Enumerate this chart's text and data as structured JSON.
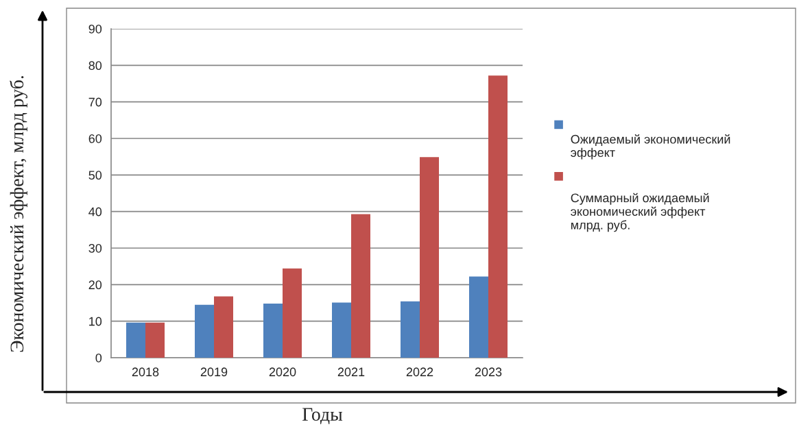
{
  "chart_data": {
    "type": "bar",
    "xlabel": "Годы",
    "ylabel": "Экономический эффект, млрд руб.",
    "categories": [
      "2018",
      "2019",
      "2020",
      "2021",
      "2022",
      "2023"
    ],
    "series": [
      {
        "name": "Ожидаемый экономический\nэффект",
        "color": "#4f81bd",
        "values": [
          9.6,
          14.5,
          14.8,
          15.1,
          15.4,
          22.2
        ]
      },
      {
        "name": "Суммарный ожидаемый\nэкономический эффект\nмлрд. руб.",
        "color": "#c0504d",
        "values": [
          9.6,
          16.8,
          24.4,
          39.3,
          54.9,
          77.2
        ]
      }
    ],
    "ylim": [
      0,
      90
    ],
    "yticks": [
      0,
      10,
      20,
      30,
      40,
      50,
      60,
      70,
      80,
      90
    ],
    "grid": "y",
    "legend": "right"
  }
}
